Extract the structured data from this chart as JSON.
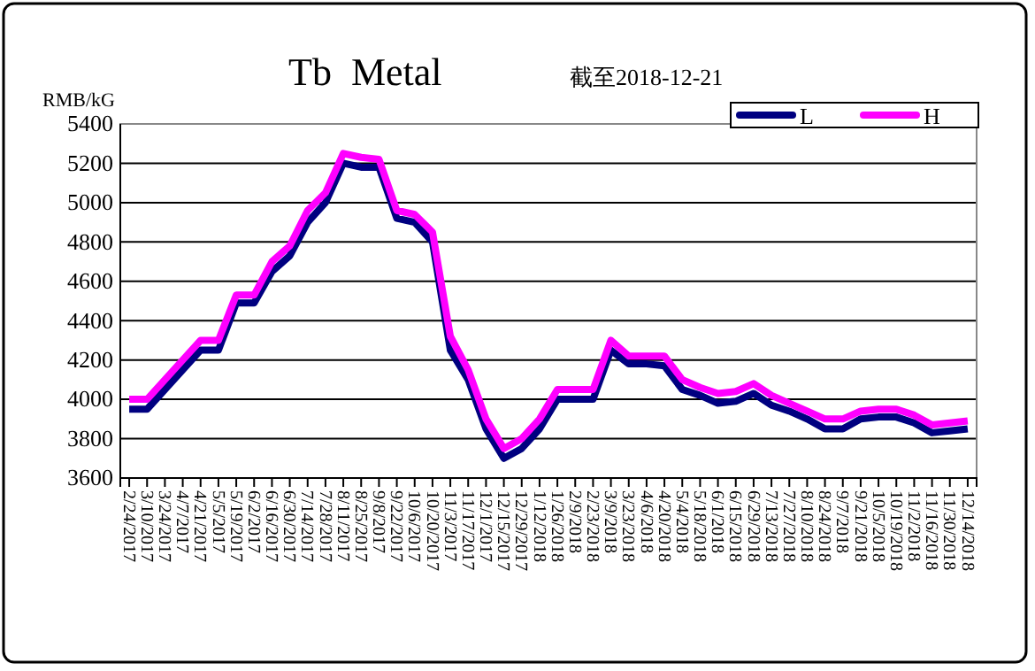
{
  "chart_data": {
    "type": "line",
    "title": "Tb  Metal",
    "subtitle": "截至2018-12-21",
    "ylabel": "RMB/kG",
    "categories": [
      "2/24/2017",
      "3/10/2017",
      "3/24/2017",
      "4/7/2017",
      "4/21/2017",
      "5/5/2017",
      "5/19/2017",
      "6/2/2017",
      "6/16/2017",
      "6/30/2017",
      "7/14/2017",
      "7/28/2017",
      "8/11/2017",
      "8/25/2017",
      "9/8/2017",
      "9/22/2017",
      "10/6/2017",
      "10/20/2017",
      "11/3/2017",
      "11/17/2017",
      "12/1/2017",
      "12/15/2017",
      "12/29/2017",
      "1/12/2018",
      "1/26/2018",
      "2/9/2018",
      "2/23/2018",
      "3/9/2018",
      "3/23/2018",
      "4/6/2018",
      "4/20/2018",
      "5/4/2018",
      "5/18/2018",
      "6/1/2018",
      "6/15/2018",
      "6/29/2018",
      "7/13/2018",
      "7/27/2018",
      "8/10/2018",
      "8/24/2018",
      "9/7/2018",
      "9/21/2018",
      "10/5/2018",
      "10/19/2018",
      "11/2/2018",
      "11/16/2018",
      "11/30/2018",
      "12/14/2018"
    ],
    "series": [
      {
        "name": "L",
        "color": "#000080",
        "values": [
          3950,
          3950,
          4050,
          4150,
          4250,
          4250,
          4490,
          4490,
          4650,
          4730,
          4900,
          5000,
          5200,
          5180,
          5180,
          4920,
          4900,
          4800,
          4250,
          4100,
          3850,
          3700,
          3750,
          3850,
          4000,
          4000,
          4000,
          4250,
          4180,
          4180,
          4170,
          4050,
          4020,
          3980,
          3990,
          4030,
          3970,
          3940,
          3900,
          3850,
          3850,
          3900,
          3910,
          3910,
          3880,
          3830,
          3840,
          3850
        ]
      },
      {
        "name": "H",
        "color": "#ff00ff",
        "values": [
          4000,
          4000,
          4100,
          4200,
          4300,
          4300,
          4530,
          4530,
          4700,
          4780,
          4960,
          5050,
          5250,
          5230,
          5220,
          4960,
          4940,
          4850,
          4320,
          4150,
          3900,
          3750,
          3800,
          3900,
          4050,
          4050,
          4050,
          4300,
          4220,
          4220,
          4220,
          4100,
          4060,
          4030,
          4040,
          4080,
          4020,
          3980,
          3940,
          3900,
          3900,
          3940,
          3950,
          3950,
          3920,
          3870,
          3880,
          3890
        ]
      }
    ],
    "ylim": [
      3600,
      5400
    ],
    "yticks": [
      3600,
      3800,
      4000,
      4200,
      4400,
      4600,
      4800,
      5000,
      5200,
      5400
    ],
    "grid": "y",
    "legend": "top right",
    "marker": "none",
    "line_style": "solid"
  }
}
